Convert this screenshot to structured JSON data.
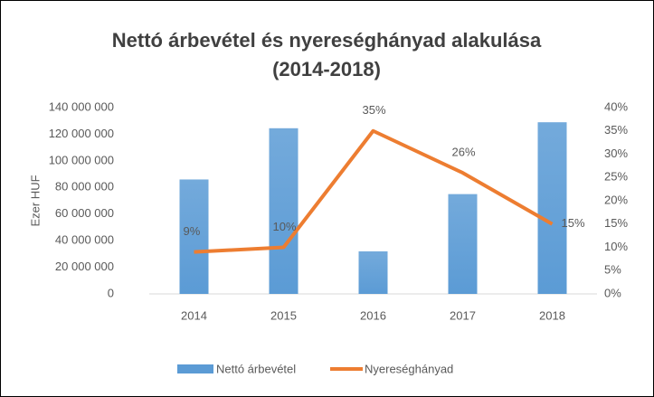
{
  "chart_data": {
    "type": "bar-line",
    "title": [
      "Nettó árbevétel és nyereséghányad alakulása",
      "(2014-2018)"
    ],
    "ylabel": "Ezer HUF",
    "categories": [
      "2014",
      "2015",
      "2016",
      "2017",
      "2018"
    ],
    "series": [
      {
        "name": "Nettó árbevétel",
        "type": "bar",
        "color": "#5b9bd5",
        "values": [
          86000000,
          124500000,
          32000000,
          75000000,
          129000000
        ]
      },
      {
        "name": "Nyereséghányad",
        "type": "line",
        "axis": "y2",
        "color": "#ed7d31",
        "values": [
          9,
          10,
          35,
          26,
          15
        ],
        "value_labels": [
          "9%",
          "10%",
          "35%",
          "26%",
          "15%"
        ]
      }
    ],
    "ylim": [
      0,
      140000000
    ],
    "yticks": [
      {
        "value": 0,
        "label": "0"
      },
      {
        "value": 20000000,
        "label": "20 000 000"
      },
      {
        "value": 40000000,
        "label": "40 000 000"
      },
      {
        "value": 60000000,
        "label": "60 000 000"
      },
      {
        "value": 80000000,
        "label": "80 000 000"
      },
      {
        "value": 100000000,
        "label": "100 000 000"
      },
      {
        "value": 120000000,
        "label": "120 000 000"
      },
      {
        "value": 140000000,
        "label": "140 000 000"
      }
    ],
    "y2lim": [
      0,
      40
    ],
    "y2ticks": [
      {
        "value": 0,
        "label": "0%"
      },
      {
        "value": 5,
        "label": "5%"
      },
      {
        "value": 10,
        "label": "10%"
      },
      {
        "value": 15,
        "label": "15%"
      },
      {
        "value": 20,
        "label": "20%"
      },
      {
        "value": 25,
        "label": "25%"
      },
      {
        "value": 30,
        "label": "30%"
      },
      {
        "value": 35,
        "label": "35%"
      },
      {
        "value": 40,
        "label": "40%"
      }
    ],
    "legend": "bottom"
  }
}
